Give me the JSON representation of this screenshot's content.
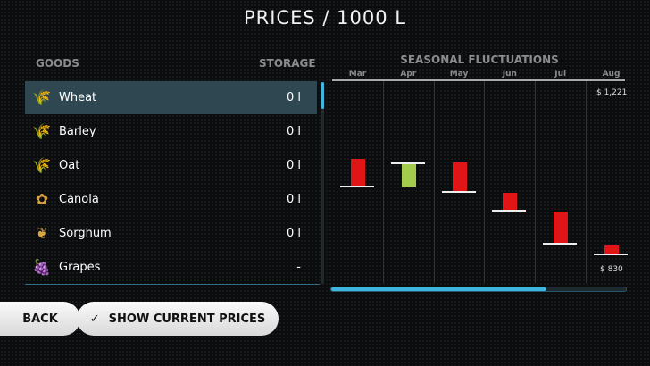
{
  "title": "PRICES / 1000 L",
  "list": {
    "goods_header": "GOODS",
    "storage_header": "STORAGE",
    "items": [
      {
        "name": "Wheat",
        "storage": "0 l",
        "icon": "wheat-icon",
        "glyph": "🌾",
        "selected": true
      },
      {
        "name": "Barley",
        "storage": "0 l",
        "icon": "barley-icon",
        "glyph": "🌾"
      },
      {
        "name": "Oat",
        "storage": "0 l",
        "icon": "oat-icon",
        "glyph": "🌾"
      },
      {
        "name": "Canola",
        "storage": "0 l",
        "icon": "canola-icon",
        "glyph": "✿"
      },
      {
        "name": "Sorghum",
        "storage": "0 l",
        "icon": "sorghum-icon",
        "glyph": "❦"
      },
      {
        "name": "Grapes",
        "storage": "-",
        "icon": "grapes-icon",
        "glyph": "🍇"
      }
    ]
  },
  "chart_data": {
    "type": "bar",
    "title": "SEASONAL FLUCTUATIONS",
    "categories": [
      "Mar",
      "Apr",
      "May",
      "Jun",
      "Jul",
      "Aug"
    ],
    "price": [
      1012,
      1064,
      1001,
      960,
      887,
      863
    ],
    "bar_end": [
      1074,
      1012,
      1066,
      999,
      958,
      883
    ],
    "max_label": "$ 1,221",
    "min_label": "$ 830",
    "ylim": [
      830,
      1221
    ],
    "colors": {
      "decrease": "#e01515",
      "increase": "#a3cc4d"
    }
  },
  "scroll": {
    "horizontal_fraction": 0.73
  },
  "buttons": {
    "back": "BACK",
    "show_current": "SHOW CURRENT PRICES"
  }
}
